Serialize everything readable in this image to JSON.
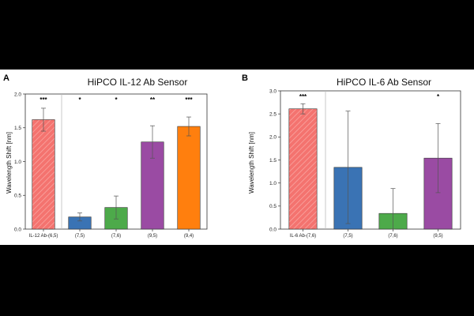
{
  "chart_data": [
    {
      "type": "bar",
      "panel_label": "A",
      "title": "HiPCO IL-12 Ab Sensor",
      "ylabel": "Wavelength Shift [nm]",
      "xlabel": "",
      "ylim": [
        0,
        2.0
      ],
      "yticks": [
        0.0,
        0.5,
        1.0,
        1.5,
        2.0
      ],
      "ytick_labels": [
        "0.0",
        "0.5",
        "1.0",
        "1.5",
        "2.0"
      ],
      "grid": false,
      "legend": "none",
      "categories": [
        "IL-12 Ab-(6,5)",
        "(7,5)",
        "(7,6)",
        "(9,5)",
        "(9,4)"
      ],
      "values": [
        1.62,
        0.18,
        0.32,
        1.29,
        1.52
      ],
      "error": [
        0.17,
        0.06,
        0.17,
        0.24,
        0.14
      ],
      "significance": [
        "***",
        "*",
        "*",
        "**",
        "***"
      ],
      "colors": [
        "#f4736f",
        "#3a73b4",
        "#4daa4a",
        "#9a4ba3",
        "#ff7f0e"
      ],
      "hatched": [
        true,
        false,
        false,
        false,
        false
      ],
      "separator_after_index": 0
    },
    {
      "type": "bar",
      "panel_label": "B",
      "title": "HiPCO IL-6 Ab Sensor",
      "ylabel": "Wavelength Shift [nm]",
      "xlabel": "",
      "ylim": [
        0,
        3.0
      ],
      "yticks": [
        0.0,
        0.5,
        1.0,
        1.5,
        2.0,
        2.5,
        3.0
      ],
      "ytick_labels": [
        "0.0",
        "0.5",
        "1.0",
        "1.5",
        "2.0",
        "2.5",
        "3.0"
      ],
      "grid": false,
      "legend": "none",
      "categories": [
        "IL-6 Ab-(7,6)",
        "(7,5)",
        "(7,6)",
        "(9,5)"
      ],
      "values": [
        2.61,
        1.34,
        0.34,
        1.54
      ],
      "error": [
        0.11,
        1.22,
        0.54,
        0.75
      ],
      "significance": [
        "***",
        "",
        "",
        "*"
      ],
      "colors": [
        "#f4736f",
        "#3a73b4",
        "#4daa4a",
        "#9a4ba3"
      ],
      "hatched": [
        true,
        false,
        false,
        false
      ],
      "separator_after_index": 0
    }
  ]
}
